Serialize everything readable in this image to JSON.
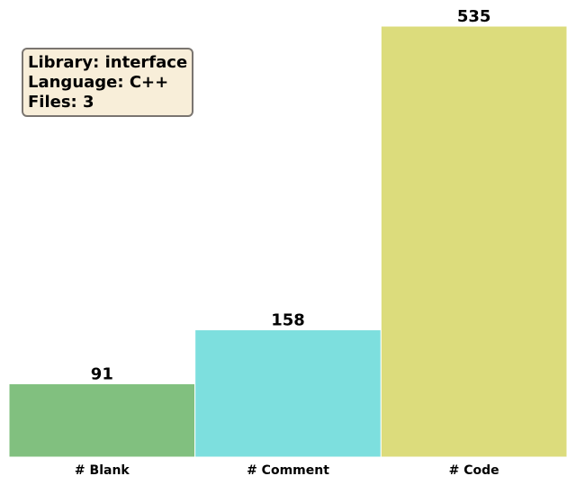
{
  "info_box": {
    "lines": [
      "Library: interface",
      "Language: C++",
      "Files: 3"
    ]
  },
  "chart_data": {
    "type": "bar",
    "categories": [
      "# Blank",
      "# Comment",
      "# Code"
    ],
    "values": [
      91,
      158,
      535
    ],
    "colors": [
      "#81c07f",
      "#7ddfde",
      "#dcdc7c"
    ],
    "title": "",
    "xlabel": "",
    "ylabel": "",
    "ylim": [
      0,
      535
    ],
    "grid": false,
    "legend": "none"
  }
}
